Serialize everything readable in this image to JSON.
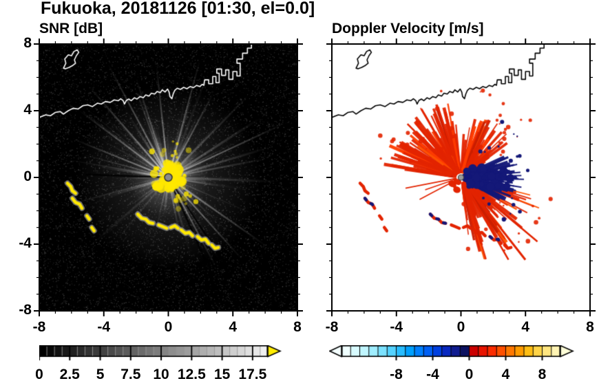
{
  "title": "Fukuoka, 20181126 [01:30, el=0.0]",
  "panels": {
    "snr": {
      "label": "SNR [dB]"
    },
    "doppler": {
      "label": "Doppler Velocity [m/s]"
    }
  },
  "axes": {
    "xlim": [
      -8,
      8
    ],
    "ylim": [
      -8,
      8
    ],
    "x_tick_labels": [
      "-8",
      "-4",
      "0",
      "4",
      "8"
    ],
    "y_tick_labels": [
      "8",
      "4",
      "0",
      "-4",
      "-8"
    ],
    "x_tick_values": [
      -8,
      -4,
      0,
      4,
      8
    ],
    "y_tick_values": [
      8,
      4,
      0,
      -4,
      -8
    ],
    "minor_tick_step": 1
  },
  "colorbars": {
    "snr": {
      "range": [
        0,
        18.75
      ],
      "cell_step": 0.625,
      "tick_labels": [
        "0",
        "2.5",
        "5",
        "7.5",
        "10",
        "12.5",
        "15",
        "17.5"
      ],
      "tick_values": [
        0,
        2.5,
        5,
        7.5,
        10,
        12.5,
        15,
        17.5
      ],
      "colormap": "grayscale black to white",
      "over_arrow_color": "#ffec00"
    },
    "doppler": {
      "range": [
        -14,
        10
      ],
      "tick_labels": [
        "-8",
        "-4",
        "0",
        "4",
        "8"
      ],
      "tick_values": [
        -8,
        -4,
        0,
        4,
        8
      ],
      "under_arrow_color": "#f4ffff",
      "over_arrow_color": "#ffffd8",
      "cell_colors": [
        "#f0ffff",
        "#d8fbff",
        "#c0f6ff",
        "#a0eeff",
        "#7ce2ff",
        "#54d2ff",
        "#28bcff",
        "#00a0ff",
        "#0080ff",
        "#0060f4",
        "#0040e0",
        "#0828c0",
        "#101c90",
        "#0c1260",
        "#cc0000",
        "#e81400",
        "#fb2c00",
        "#ff5000",
        "#ff7800",
        "#ff9c00",
        "#ffbe14",
        "#ffd448",
        "#ffe680",
        "#fff4b4"
      ]
    }
  },
  "chart_data": [
    {
      "type": "heatmap",
      "title": "SNR [dB]",
      "xlabel": "",
      "ylabel": "",
      "xlim": [
        -8,
        8
      ],
      "ylim": [
        -8,
        8
      ],
      "xticks": [
        -8,
        -4,
        0,
        4,
        8
      ],
      "yticks": [
        -8,
        -4,
        0,
        4,
        8
      ],
      "colorbar": {
        "range_shown": [
          0,
          18.75
        ],
        "ticks": [
          0,
          2.5,
          5,
          7.5,
          10,
          12.5,
          15,
          17.5
        ],
        "colormap": "black-to-white grayscale with yellow over-range arrow"
      },
      "features": [
        "saturated yellow high-SNR echo core within ~1.5 units of the radar at the origin, with a small gray dot at the exact radar position",
        "bright white radial interference spokes radiating from the origin in most azimuths, strongest toward NW, NE and SE",
        "speckled near-black background noise (~0-4 dB) elsewhere",
        "yellow ground/sea-clutter arcs with gray fringes near (-6,-0.5), (-5.6,-1.5), (-5,-2.4), (-4.7,-3.1) and a broken chain from (-1.9,-2.2) to (3.1,-4.2)",
        "white coastline of the bay crossing the panel near y=4..5.5 with blocky harbor structures at upper right and a small island at upper left"
      ]
    },
    {
      "type": "heatmap",
      "title": "Doppler Velocity [m/s]",
      "xlabel": "",
      "ylabel": "",
      "xlim": [
        -8,
        8
      ],
      "ylim": [
        -8,
        8
      ],
      "xticks": [
        -8,
        -4,
        0,
        4,
        8
      ],
      "yticks": [
        -8,
        -4,
        0,
        4,
        8
      ],
      "colorbar": {
        "range_shown": [
          -14,
          10
        ],
        "ticks": [
          -8,
          -4,
          0,
          4,
          8
        ],
        "colormap": "pale-cyan/blue/navy for negative velocities, red/orange/yellow for positive, triangular arrows at both ends"
      },
      "features": [
        "spiky red fan (~+1 to +5 m/s) northwest and southeast of the radar reaching ~3.5 units",
        "dark navy lobe (~-1 to -3 m/s) immediately east of the radar out to ~3 units with ragged edges",
        "white (no data) over the rest of the domain",
        "red clutter arcs with small navy flecks to the southwest, matching the SNR clutter positions",
        "thin black coastline across the top of the panel identical to the SNR panel"
      ]
    }
  ],
  "render": {
    "coastline": [
      [
        -8.0,
        3.6
      ],
      [
        -7.6,
        3.75
      ],
      [
        -7.3,
        3.7
      ],
      [
        -7.0,
        3.9
      ],
      [
        -6.7,
        3.95
      ],
      [
        -6.5,
        3.8
      ],
      [
        -6.2,
        4.0
      ],
      [
        -5.9,
        4.15
      ],
      [
        -5.6,
        4.1
      ],
      [
        -5.3,
        4.3
      ],
      [
        -5.0,
        4.35
      ],
      [
        -4.7,
        4.25
      ],
      [
        -4.4,
        4.45
      ],
      [
        -4.15,
        4.4
      ],
      [
        -3.9,
        4.55
      ],
      [
        -3.6,
        4.5
      ],
      [
        -3.35,
        4.65
      ],
      [
        -3.1,
        4.6
      ],
      [
        -2.95,
        4.72
      ],
      [
        -2.8,
        4.6
      ],
      [
        -2.72,
        4.4
      ],
      [
        -2.6,
        4.62
      ],
      [
        -2.45,
        4.7
      ],
      [
        -2.3,
        4.6
      ],
      [
        -2.1,
        4.78
      ],
      [
        -1.95,
        4.7
      ],
      [
        -1.75,
        4.85
      ],
      [
        -1.55,
        4.78
      ],
      [
        -1.4,
        4.95
      ],
      [
        -1.2,
        4.88
      ],
      [
        -1.05,
        5.05
      ],
      [
        -0.85,
        5.0
      ],
      [
        -0.7,
        5.15
      ],
      [
        -0.5,
        5.08
      ],
      [
        -0.38,
        5.25
      ],
      [
        -0.2,
        5.12
      ],
      [
        -0.05,
        5.3
      ],
      [
        0.05,
        5.12
      ],
      [
        0.1,
        4.85
      ],
      [
        0.22,
        4.72
      ],
      [
        0.3,
        5.0
      ],
      [
        0.4,
        5.22
      ],
      [
        0.55,
        5.35
      ],
      [
        0.75,
        5.28
      ],
      [
        0.95,
        5.4
      ],
      [
        1.15,
        5.32
      ],
      [
        1.35,
        5.45
      ],
      [
        1.55,
        5.38
      ],
      [
        1.75,
        5.52
      ],
      [
        1.95,
        5.45
      ],
      [
        2.1,
        5.58
      ],
      [
        2.2,
        5.52
      ],
      [
        2.25,
        5.85
      ],
      [
        2.5,
        5.85
      ],
      [
        2.5,
        5.62
      ],
      [
        2.75,
        5.62
      ],
      [
        2.75,
        6.05
      ],
      [
        2.95,
        6.05
      ],
      [
        2.95,
        5.68
      ],
      [
        3.15,
        5.68
      ],
      [
        3.15,
        6.25
      ],
      [
        3.0,
        6.25
      ],
      [
        3.0,
        6.5
      ],
      [
        3.3,
        6.5
      ],
      [
        3.3,
        6.12
      ],
      [
        3.55,
        6.12
      ],
      [
        3.55,
        6.45
      ],
      [
        3.75,
        6.45
      ],
      [
        3.75,
        5.88
      ],
      [
        4.0,
        5.88
      ],
      [
        4.0,
        6.35
      ],
      [
        4.25,
        6.35
      ],
      [
        4.25,
        6.08
      ],
      [
        4.45,
        6.08
      ],
      [
        4.45,
        6.85
      ],
      [
        4.25,
        6.85
      ],
      [
        4.25,
        7.1
      ],
      [
        4.6,
        7.1
      ],
      [
        4.6,
        7.45
      ],
      [
        4.9,
        7.45
      ],
      [
        4.9,
        7.75
      ],
      [
        5.15,
        7.75
      ],
      [
        5.15,
        8.1
      ]
    ],
    "island": [
      [
        -6.5,
        6.55
      ],
      [
        -6.35,
        6.85
      ],
      [
        -6.42,
        7.1
      ],
      [
        -6.2,
        7.35
      ],
      [
        -6.0,
        7.3
      ],
      [
        -5.85,
        7.55
      ],
      [
        -5.65,
        7.65
      ],
      [
        -5.55,
        7.5
      ],
      [
        -5.7,
        7.3
      ],
      [
        -5.82,
        7.05
      ],
      [
        -5.75,
        6.85
      ],
      [
        -5.95,
        6.7
      ],
      [
        -6.15,
        6.6
      ],
      [
        -6.38,
        6.52
      ]
    ],
    "clutter_arcs": [
      [
        [
          -6.25,
          -0.35
        ],
        [
          -6.05,
          -0.55
        ],
        [
          -5.95,
          -0.8
        ],
        [
          -5.75,
          -0.95
        ]
      ],
      [
        [
          -5.95,
          -1.25
        ],
        [
          -5.75,
          -1.5
        ],
        [
          -5.5,
          -1.6
        ],
        [
          -5.35,
          -1.85
        ]
      ],
      [
        [
          -5.05,
          -2.3
        ],
        [
          -4.9,
          -2.5
        ]
      ],
      [
        [
          -4.75,
          -3.0
        ],
        [
          -4.6,
          -3.2
        ]
      ],
      [
        [
          -1.9,
          -2.2
        ],
        [
          -1.65,
          -2.45
        ],
        [
          -1.4,
          -2.5
        ],
        [
          -1.2,
          -2.7
        ],
        [
          -0.95,
          -2.75
        ]
      ],
      [
        [
          -0.6,
          -2.85
        ],
        [
          -0.35,
          -2.95
        ],
        [
          -0.1,
          -3.05
        ]
      ],
      [
        [
          0.15,
          -3.0
        ],
        [
          0.4,
          -2.9
        ],
        [
          0.6,
          -3.05
        ]
      ],
      [
        [
          0.8,
          -3.15
        ],
        [
          1.05,
          -3.35
        ],
        [
          1.3,
          -3.3
        ],
        [
          1.5,
          -3.5
        ]
      ],
      [
        [
          1.8,
          -3.55
        ],
        [
          2.05,
          -3.75
        ],
        [
          2.3,
          -3.7
        ],
        [
          2.5,
          -3.95
        ]
      ],
      [
        [
          2.7,
          -4.05
        ],
        [
          2.9,
          -4.25
        ],
        [
          3.1,
          -4.2
        ]
      ]
    ],
    "snr": {
      "bg": "#000000",
      "core_color": "#ffe800",
      "clutter_color": "#ffe800",
      "clutter_fringe": "rgba(200,200,200,0.55)",
      "coast_color": "#ffffff",
      "center_dot": "#8a8a8a",
      "bright_ray_angles": [
        62,
        75,
        96,
        108,
        118,
        131,
        143,
        158,
        25,
        -35,
        -48,
        -62
      ]
    },
    "doppler": {
      "bg": "#ffffff",
      "fan_color": "#e32400",
      "fan_alt_colors": [
        "#ff5200",
        "#c81c00",
        "#ff3c00"
      ],
      "navy": "#141878",
      "coast_color": "#000000",
      "center_dot": "#9a9a9a",
      "sectors": [
        {
          "a0": 95,
          "a1": 172,
          "n": 95,
          "rmin": 28,
          "rmax": 115
        },
        {
          "a0": 28,
          "a1": 88,
          "n": 55,
          "rmin": 25,
          "rmax": 95
        },
        {
          "a0": -85,
          "a1": -12,
          "n": 85,
          "rmin": 30,
          "rmax": 128
        }
      ],
      "spikes": [
        [
          -40,
          145,
          2.5
        ],
        [
          -52,
          152,
          3
        ],
        [
          -60,
          138,
          2.5
        ],
        [
          120,
          115,
          3
        ],
        [
          135,
          110,
          2.5
        ],
        [
          150,
          103,
          2.5
        ],
        [
          108,
          108,
          2.5
        ]
      ],
      "navy_dash_arcs": [
        1,
        4,
        8
      ]
    }
  }
}
